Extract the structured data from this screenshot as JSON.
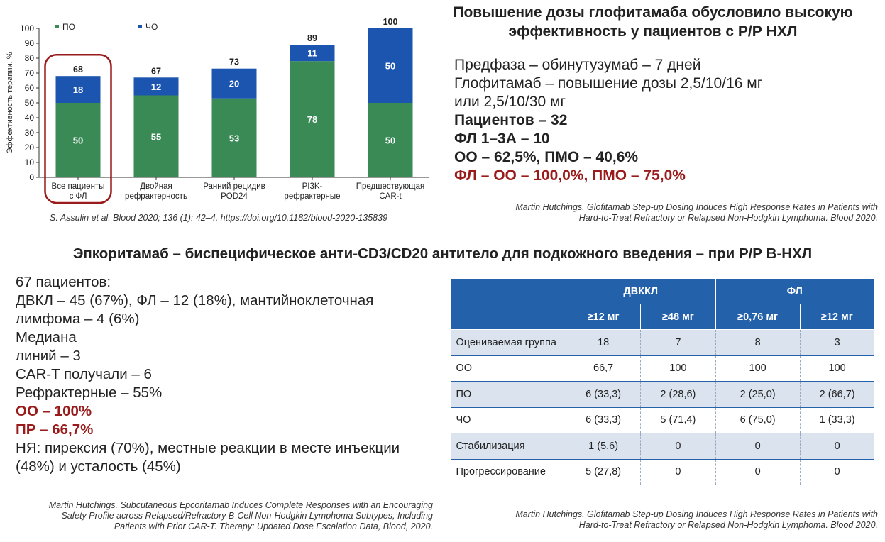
{
  "chart_data": {
    "type": "bar",
    "stacked": true,
    "categories": [
      "Все пациенты с ФЛ",
      "Двойная рефрактерность",
      "Ранний рецидив POD24",
      "PI3K-рефрактерные",
      "Предшествующая CAR-t"
    ],
    "category_lines": [
      [
        "Все пациенты",
        "с ФЛ"
      ],
      [
        "Двойная",
        "рефрактерность"
      ],
      [
        "Ранний рецидив",
        "POD24"
      ],
      [
        "PI3K-",
        "рефрактерные"
      ],
      [
        "Предшествующая",
        "CAR-t"
      ]
    ],
    "series": [
      {
        "name": "ПО",
        "values": [
          50,
          55,
          53,
          78,
          50
        ],
        "color": "#3a8a55"
      },
      {
        "name": "ЧО",
        "values": [
          18,
          12,
          20,
          11,
          50
        ],
        "color": "#1c55b0"
      }
    ],
    "totals": [
      68,
      67,
      73,
      89,
      100
    ],
    "ylabel": "Эффективность терапии, %",
    "ylim": [
      0,
      100
    ],
    "yticks": [
      0,
      10,
      20,
      30,
      40,
      50,
      60,
      70,
      80,
      90,
      100
    ],
    "highlight_category_index": 0,
    "highlight_color": "#9a1b1b"
  },
  "top_right": {
    "title_line1": "Повышение дозы глофитамаба обусловило высокую",
    "title_line2": "эффективность у пациентов с Р/Р НХЛ",
    "line1": "Предфаза – обинутузумаб – 7 дней",
    "line2": "Глофитамаб – повышение дозы 2,5/10/16 мг",
    "line3": "или 2,5/10/30 мг",
    "line4": "Пациентов – 32",
    "line5": "ФЛ 1–3А – 10",
    "line6": "ОО – 62,5%, ПМО – 40,6%",
    "line7": "ФЛ – ОО – 100,0%, ПМО – 75,0%",
    "citation_line1": "Martin Hutchings. Glofitamab Step-up Dosing Induces High Response Rates in Patients with",
    "citation_line2": "Hard-to-Treat Refractory or Relapsed Non-Hodgkin Lymphoma. Blood 2020."
  },
  "chart_citation": "S. Assulin et al. Blood 2020; 136 (1): 42–4. https://doi.org/10.1182/blood-2020-135839",
  "section_title": "Эпкоритамаб – биспецифическое анти-CD3/CD20 антитело для подкожного введения – при Р/Р B-НХЛ",
  "left_list": {
    "l1": "67 пациентов:",
    "l2": "ДВКЛ – 45 (67%), ФЛ – 12 (18%), мантийноклеточная",
    "l3": "лимфома – 4 (6%)",
    "l4": "Медиана",
    "l5": "линий – 3",
    "l6": "CAR-T получали – 6",
    "l7": "Рефрактерные – 55%",
    "l8": "ОО – 100%",
    "l9": "ПР – 66,7%",
    "l10": "НЯ: пирексия (70%), местные реакции в месте инъекции",
    "l11": "(48%) и усталость (45%)",
    "citation_line1": "Martin Hutchings. Subcutaneous Epcoritamab Induces Complete Responses with an Encouraging",
    "citation_line2": "Safety Profile across Relapsed/Refractory B-Cell Non-Hodgkin Lymphoma Subtypes, Including",
    "citation_line3": "Patients with Prior CAR-T. Therapy: Updated Dose Escalation Data, Blood, 2020."
  },
  "table": {
    "group1": "ДВККЛ",
    "group2": "ФЛ",
    "dose1": "≥12 мг",
    "dose2": "≥48 мг",
    "dose3": "≥0,76 мг",
    "dose4": "≥12 мг",
    "rows": [
      {
        "label": "Оцениваемая группа",
        "c1": "18",
        "c2": "7",
        "c3": "8",
        "c4": "3"
      },
      {
        "label": "ОО",
        "c1": "66,7",
        "c2": "100",
        "c3": "100",
        "c4": "100"
      },
      {
        "label": "ПО",
        "c1": "6 (33,3)",
        "c2": "2 (28,6)",
        "c3": "2 (25,0)",
        "c4": "2 (66,7)"
      },
      {
        "label": "ЧО",
        "c1": "6 (33,3)",
        "c2": "5 (71,4)",
        "c3": "6 (75,0)",
        "c4": "1 (33,3)"
      },
      {
        "label": "Стабилизация",
        "c1": "1 (5,6)",
        "c2": "0",
        "c3": "0",
        "c4": "0"
      },
      {
        "label": "Прогрессирование",
        "c1": "5 (27,8)",
        "c2": "0",
        "c3": "0",
        "c4": "0"
      }
    ]
  },
  "bottom_right_citation": {
    "line1": "Martin Hutchings. Glofitamab Step-up Dosing Induces High Response Rates in Patients with",
    "line2": "Hard-to-Treat Refractory or Relapsed Non-Hodgkin Lymphoma. Blood 2020."
  }
}
